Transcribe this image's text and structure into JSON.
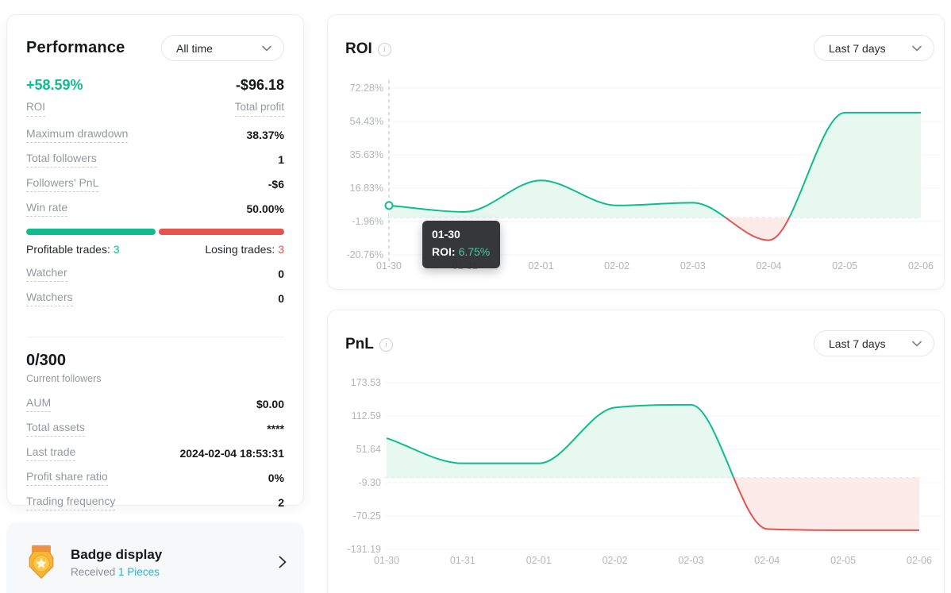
{
  "colors": {
    "green": "#0fbd8c",
    "red": "#e2544d",
    "green_fill": "#e7f8f1",
    "red_fill": "#fcebe9",
    "cyan": "#29b2d3",
    "tooltip_green": "#3ecf9a",
    "axis_text": "#b2b5ba",
    "gridline": "#f3f4f6",
    "zero_dash": "#d4d7db",
    "crosshair": "#c2c5c9"
  },
  "performance_card": {
    "title": "Performance",
    "range_selector": "All time",
    "primary": {
      "roi_value": "+58.59%",
      "roi_label": "ROI",
      "profit_value": "-$96.18",
      "profit_label": "Total profit"
    },
    "stats": [
      {
        "label": "Maximum drawdown",
        "value": "38.37%"
      },
      {
        "label": "Total followers",
        "value": "1"
      },
      {
        "label": "Followers' PnL",
        "value": "-$6"
      },
      {
        "label": "Win rate",
        "value": "50.00%"
      }
    ],
    "win_split": {
      "profitable_pct": 50,
      "losing_pct": 50
    },
    "trades": {
      "profitable_label": "Profitable trades:",
      "profitable_value": "3",
      "losing_label": "Losing trades:",
      "losing_value": "3"
    },
    "watch_stats": [
      {
        "label": "Watcher",
        "value": "0"
      },
      {
        "label": "Watchers",
        "value": "0"
      }
    ],
    "followers": {
      "value": "0/300",
      "caption": "Current followers"
    },
    "account_stats": [
      {
        "label": "AUM",
        "value": "$0.00"
      },
      {
        "label": "Total assets",
        "value": "****"
      },
      {
        "label": "Last trade",
        "value": "2024-02-04 18:53:31"
      },
      {
        "label": "Profit share ratio",
        "value": "0%"
      },
      {
        "label": "Trading frequency",
        "value": "2"
      }
    ]
  },
  "badge_card": {
    "title": "Badge display",
    "received_label": "Received",
    "received_value": "1 Pieces",
    "medal_icon": "gold-medal-icon"
  },
  "chart_data": [
    {
      "type": "area",
      "title": "ROI",
      "range_selector": "Last 7 days",
      "x": [
        "01-30",
        "01-31",
        "02-01",
        "02-02",
        "02-03",
        "02-04",
        "02-05",
        "02-06"
      ],
      "values": [
        6.75,
        3.2,
        20.8,
        6.8,
        8.3,
        -12.6,
        58.59,
        58.59
      ],
      "unit": "%",
      "yticks": [
        "72.28%",
        "54.43%",
        "35.63%",
        "16.83%",
        "-1.96%",
        "-20.76%"
      ],
      "ylim": [
        -20.76,
        72.28
      ],
      "grid": "horizontal",
      "baseline": 0,
      "legend": "none",
      "tooltip": {
        "date": "01-30",
        "label": "ROI:",
        "value": "6.75%",
        "point_index": 0
      }
    },
    {
      "type": "area",
      "title": "PnL",
      "range_selector": "Last 7 days",
      "x": [
        "01-30",
        "01-31",
        "02-01",
        "02-02",
        "02-03",
        "02-04",
        "02-05",
        "02-06"
      ],
      "values": [
        72,
        26,
        26,
        128,
        133,
        -94,
        -96.18,
        -96.18
      ],
      "unit": "",
      "yticks": [
        "173.53",
        "112.59",
        "51.64",
        "-9.30",
        "-70.25",
        "-131.19"
      ],
      "ylim": [
        -131.19,
        173.53
      ],
      "grid": "horizontal",
      "baseline": 0,
      "legend": "none"
    }
  ]
}
